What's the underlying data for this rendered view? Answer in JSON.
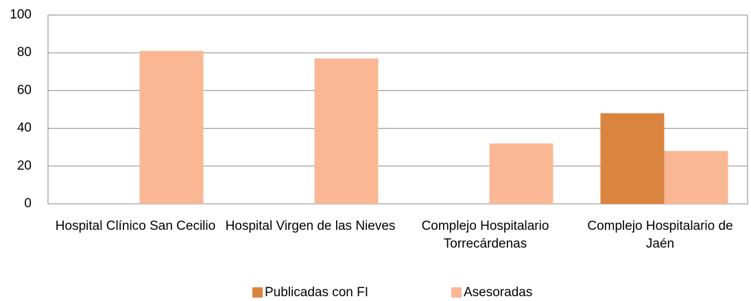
{
  "chart_data": {
    "type": "bar",
    "categories": [
      "Hospital Clínico San Cecilio",
      "Hospital Virgen de las Nieves",
      "Complejo Hospitalario Torrecárdenas",
      "Complejo Hospitalario de Jaén"
    ],
    "series": [
      {
        "name": "Publicadas con FI",
        "color": "#d9843f",
        "values": [
          0,
          0,
          0,
          48
        ]
      },
      {
        "name": "Asesoradas",
        "color": "#f9b794",
        "values": [
          81,
          77,
          32,
          28
        ]
      }
    ],
    "ylim": [
      0,
      100
    ],
    "yticks": [
      0,
      20,
      40,
      60,
      80,
      100
    ],
    "grid": true,
    "legend": "bottom"
  }
}
